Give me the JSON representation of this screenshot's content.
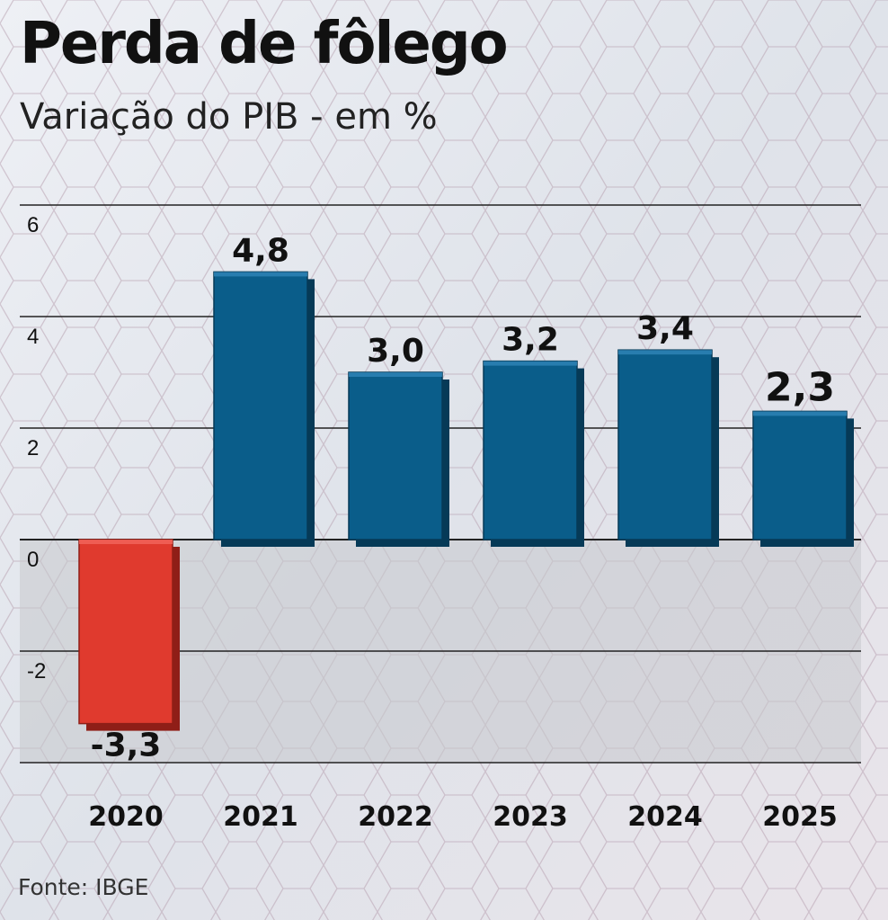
{
  "title": "Perda de fôlego",
  "subtitle": "Variação do PIB - em %",
  "source": "Fonte: IBGE",
  "colors": {
    "positive": "#0a5d8a",
    "negative": "#e03a2e",
    "negative_zone": "#c6c8cc"
  },
  "chart_data": {
    "type": "bar",
    "categories": [
      "2020",
      "2021",
      "2022",
      "2023",
      "2024",
      "2025"
    ],
    "values": [
      -3.3,
      4.8,
      3.0,
      3.2,
      3.4,
      2.3
    ],
    "value_labels": [
      "-3,3",
      "4,8",
      "3,0",
      "3,2",
      "3,4",
      "2,3"
    ],
    "yticks": [
      6,
      4,
      2,
      0,
      -2
    ],
    "ylim": [
      -4,
      6
    ],
    "grid": true
  }
}
